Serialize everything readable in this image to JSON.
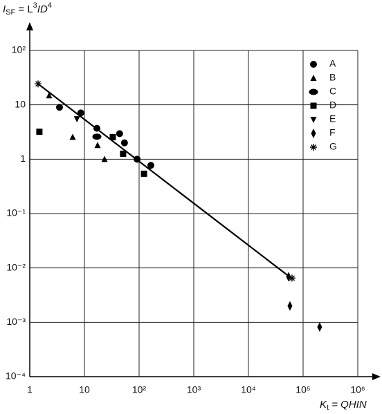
{
  "chart_data": {
    "type": "scatter",
    "xlabel": [
      "K",
      "t",
      " = QHIN"
    ],
    "ylabel": [
      "I",
      "SF",
      " = L",
      "3",
      "ID",
      "4"
    ],
    "xscale": "log",
    "yscale": "log",
    "grid": true,
    "legend": "upper right",
    "xlim": [
      1,
      1000000
    ],
    "ylim": [
      0.0001,
      100
    ],
    "xticks": [
      1,
      10,
      {
        "value": 100,
        "label": "10²"
      },
      {
        "value": 1000,
        "label": "10³"
      },
      {
        "value": 10000,
        "label": "10⁴"
      },
      {
        "value": 100000,
        "label": "10⁵"
      },
      {
        "value": 1000000,
        "label": "10⁶"
      }
    ],
    "yticks": [
      {
        "value": 0.0001,
        "label": "10⁻⁴"
      },
      {
        "value": 0.001,
        "label": "10⁻³"
      },
      {
        "value": 0.01,
        "label": "10⁻²"
      },
      {
        "value": 0.1,
        "label": "10⁻¹"
      },
      1,
      10,
      {
        "value": 100,
        "label": "10²"
      }
    ],
    "fit_line": {
      "color": "#000000",
      "x": [
        1.42,
        62700
      ],
      "values": [
        24.3,
        0.00634
      ]
    },
    "series": [
      {
        "name": "A",
        "marker": "circle",
        "color": "#000000",
        "x": [
          3.5,
          8.6,
          16.9,
          44,
          54,
          92,
          164
        ],
        "values": [
          9.0,
          7.1,
          3.7,
          2.95,
          2.0,
          1.0,
          0.77
        ]
      },
      {
        "name": "B",
        "marker": "triangle-up",
        "color": "#000000",
        "x": [
          2.26,
          6.1,
          17.4,
          23.3
        ],
        "values": [
          14.8,
          2.55,
          1.8,
          1.0
        ]
      },
      {
        "name": "C",
        "marker": "ellipse",
        "color": "#000000",
        "x": [
          16.9
        ],
        "values": [
          2.6
        ]
      },
      {
        "name": "D",
        "marker": "square",
        "color": "#000000",
        "x": [
          1.5,
          33,
          51,
          123
        ],
        "values": [
          3.2,
          2.55,
          1.26,
          0.54
        ]
      },
      {
        "name": "E",
        "marker": "triangle-down",
        "color": "#000000",
        "x": [
          7.3
        ],
        "values": [
          5.5
        ]
      },
      {
        "name": "F",
        "marker": "diamond",
        "color": "#000000",
        "x": [
          54200,
          57400,
          201000
        ],
        "values": [
          0.0069,
          0.002,
          0.00082
        ]
      },
      {
        "name": "G",
        "marker": "asterisk",
        "color": "#000000",
        "x": [
          1.42,
          62700
        ],
        "values": [
          24.3,
          0.0065
        ]
      }
    ]
  }
}
